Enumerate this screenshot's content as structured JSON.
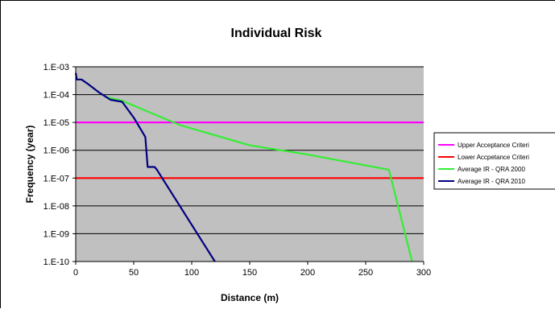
{
  "chart_data": {
    "type": "line",
    "title": "Individual Risk",
    "xlabel": "Distance (m)",
    "ylabel": "Frequency (year)",
    "xlim": [
      0,
      300
    ],
    "ylim": [
      1e-10,
      0.001
    ],
    "y_scale": "log",
    "x_ticks": [
      0,
      50,
      100,
      150,
      200,
      250,
      300
    ],
    "x_tick_labels": [
      "0",
      "50",
      "100",
      "150",
      "200",
      "250",
      "300"
    ],
    "y_ticks": [
      0.001,
      0.0001,
      1e-05,
      1e-06,
      1e-07,
      1e-08,
      1e-09,
      1e-10
    ],
    "y_tick_labels": [
      "1.E-03",
      "1.E-04",
      "1.E-05",
      "1.E-06",
      "1.E-07",
      "1.E-08",
      "1.E-09",
      "1.E-10"
    ],
    "grid": "horizontal",
    "plot_background": "#c0c0c0",
    "legend_position": "right",
    "series": [
      {
        "name": "Upper Acceptance Criteri",
        "color": "#ff00ff",
        "x": [
          0,
          300
        ],
        "y": [
          1e-05,
          1e-05
        ]
      },
      {
        "name": "Lower Accpetance Criteri",
        "color": "#ff0000",
        "x": [
          0,
          300
        ],
        "y": [
          1e-07,
          1e-07
        ]
      },
      {
        "name": "Average IR - QRA 2000",
        "color": "#33ee33",
        "x": [
          27,
          40,
          90,
          150,
          200,
          270,
          290
        ],
        "y": [
          8e-05,
          6e-05,
          8e-06,
          1.5e-06,
          7e-07,
          2e-07,
          1e-10
        ]
      },
      {
        "name": "Average IR - QRA 2010",
        "color": "#000080",
        "x": [
          0,
          1,
          5,
          10,
          20,
          30,
          40,
          50,
          60,
          62,
          68,
          70,
          120
        ],
        "y": [
          0.0006,
          0.00035,
          0.00035,
          0.00025,
          0.00012,
          6.5e-05,
          5.5e-05,
          1.5e-05,
          3e-06,
          2.5e-07,
          2.5e-07,
          2e-07,
          1e-10
        ]
      }
    ]
  }
}
